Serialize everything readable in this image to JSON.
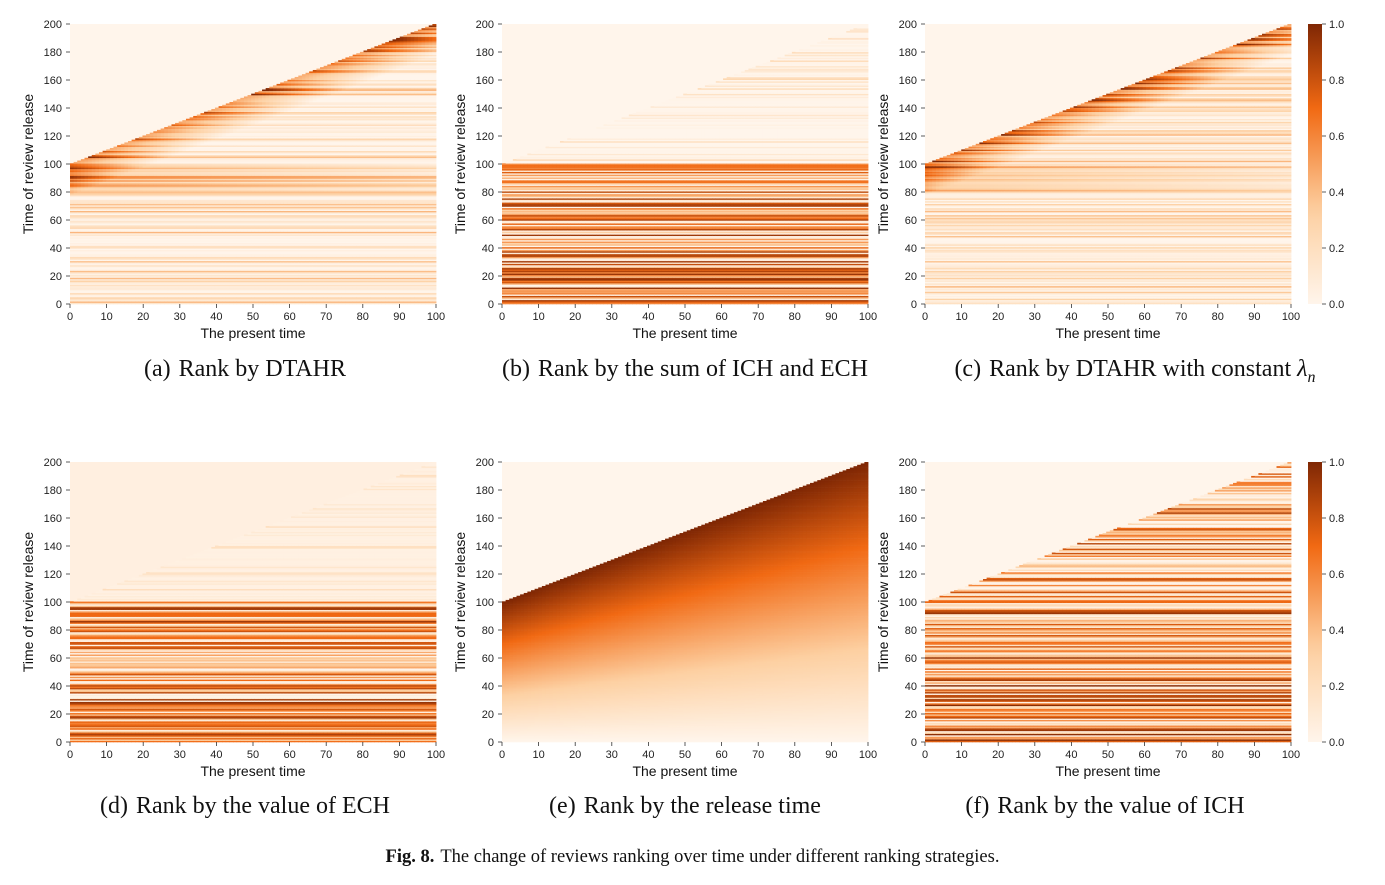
{
  "figure_caption": {
    "label": "Fig. 8.",
    "text": "The change of reviews ranking over time under different ranking strategies."
  },
  "colormap": {
    "name": "Oranges",
    "low": "#fff5eb",
    "mid": "#f16913",
    "high": "#7f2704"
  },
  "colorbar": {
    "ticks": [
      "0.0",
      "0.2",
      "0.4",
      "0.6",
      "0.8",
      "1.0"
    ]
  },
  "chart_data": [
    {
      "type": "heatmap",
      "id": "a",
      "pattern": "dtahr",
      "subcaption_label": "(a)",
      "subcaption": "Rank by DTAHR",
      "subcaption_suffix": "",
      "xlabel": "The present time",
      "ylabel": "Time of review release",
      "xlim": [
        0,
        100
      ],
      "ylim": [
        0,
        200
      ],
      "x_ticks": [
        0,
        10,
        20,
        30,
        40,
        50,
        60,
        70,
        80,
        90,
        100
      ],
      "y_ticks": [
        0,
        20,
        40,
        60,
        80,
        100,
        120,
        140,
        160,
        180,
        200
      ],
      "visible_region": "y <= 100 + x",
      "value_range": [
        0,
        1
      ]
    },
    {
      "type": "heatmap",
      "id": "b",
      "pattern": "sum",
      "subcaption_label": "(b)",
      "subcaption": "Rank by the sum of ICH and ECH",
      "subcaption_suffix": "",
      "xlabel": "The present time",
      "ylabel": "Time of review release",
      "xlim": [
        0,
        100
      ],
      "ylim": [
        0,
        200
      ],
      "x_ticks": [
        0,
        10,
        20,
        30,
        40,
        50,
        60,
        70,
        80,
        90,
        100
      ],
      "y_ticks": [
        0,
        20,
        40,
        60,
        80,
        100,
        120,
        140,
        160,
        180,
        200
      ],
      "visible_region": "y <= 100 + x",
      "value_range": [
        0,
        1
      ]
    },
    {
      "type": "heatmap",
      "id": "c",
      "pattern": "dtahr_const",
      "subcaption_label": "(c)",
      "subcaption": "Rank by DTAHR with constant ",
      "subcaption_suffix": "λn",
      "xlabel": "The present time",
      "ylabel": "Time of review release",
      "xlim": [
        0,
        100
      ],
      "ylim": [
        0,
        200
      ],
      "x_ticks": [
        0,
        10,
        20,
        30,
        40,
        50,
        60,
        70,
        80,
        90,
        100
      ],
      "y_ticks": [
        0,
        20,
        40,
        60,
        80,
        100,
        120,
        140,
        160,
        180,
        200
      ],
      "visible_region": "y <= 100 + x",
      "value_range": [
        0,
        1
      ],
      "colorbar": true
    },
    {
      "type": "heatmap",
      "id": "d",
      "pattern": "ech",
      "subcaption_label": "(d)",
      "subcaption": "Rank by the value of ECH",
      "subcaption_suffix": "",
      "xlabel": "The present time",
      "ylabel": "Time of review release",
      "xlim": [
        0,
        100
      ],
      "ylim": [
        0,
        200
      ],
      "x_ticks": [
        0,
        10,
        20,
        30,
        40,
        50,
        60,
        70,
        80,
        90,
        100
      ],
      "y_ticks": [
        0,
        20,
        40,
        60,
        80,
        100,
        120,
        140,
        160,
        180,
        200
      ],
      "visible_region": "y <= 100 + x",
      "value_range": [
        0,
        1
      ]
    },
    {
      "type": "heatmap",
      "id": "e",
      "pattern": "release",
      "subcaption_label": "(e)",
      "subcaption": "Rank by the release time",
      "subcaption_suffix": "",
      "xlabel": "The present time",
      "ylabel": "Time of review release",
      "xlim": [
        0,
        100
      ],
      "ylim": [
        0,
        200
      ],
      "x_ticks": [
        0,
        10,
        20,
        30,
        40,
        50,
        60,
        70,
        80,
        90,
        100
      ],
      "y_ticks": [
        0,
        20,
        40,
        60,
        80,
        100,
        120,
        140,
        160,
        180,
        200
      ],
      "visible_region": "y <= 100 + x",
      "value_range": [
        0,
        1
      ]
    },
    {
      "type": "heatmap",
      "id": "f",
      "pattern": "ich",
      "subcaption_label": "(f)",
      "subcaption": "Rank by the value of ICH",
      "subcaption_suffix": "",
      "xlabel": "The present time",
      "ylabel": "Time of review release",
      "xlim": [
        0,
        100
      ],
      "ylim": [
        0,
        200
      ],
      "x_ticks": [
        0,
        10,
        20,
        30,
        40,
        50,
        60,
        70,
        80,
        90,
        100
      ],
      "y_ticks": [
        0,
        20,
        40,
        60,
        80,
        100,
        120,
        140,
        160,
        180,
        200
      ],
      "visible_region": "y <= 100 + x",
      "value_range": [
        0,
        1
      ],
      "colorbar": true
    }
  ]
}
